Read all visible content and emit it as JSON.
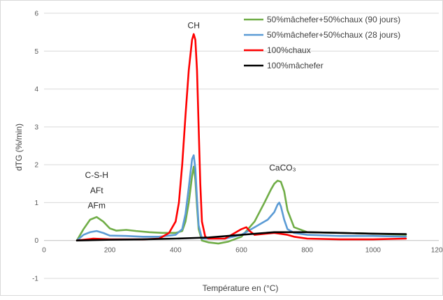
{
  "chart_data": {
    "type": "line",
    "xlabel": "Température en (°C)",
    "ylabel": "dTG (%/min)",
    "xlim": [
      0,
      1200
    ],
    "ylim": [
      -1,
      6
    ],
    "x_ticks": [
      "0",
      "200",
      "400",
      "600",
      "800",
      "1000",
      "1200"
    ],
    "y_ticks": [
      "-1",
      "0",
      "1",
      "2",
      "3",
      "4",
      "5",
      "6"
    ],
    "x_tick_values": [
      0,
      200,
      400,
      600,
      800,
      1000,
      1200
    ],
    "y_tick_values": [
      -1,
      0,
      1,
      2,
      3,
      4,
      5,
      6
    ],
    "grid": "horizontal",
    "legend_position": "top-right",
    "series": [
      {
        "name": "50%mâchefer+50%chaux (90 jours)",
        "color": "#70ad47",
        "x": [
          100,
          120,
          140,
          160,
          180,
          200,
          220,
          250,
          280,
          320,
          360,
          400,
          420,
          430,
          440,
          450,
          455,
          460,
          465,
          470,
          480,
          500,
          530,
          560,
          600,
          640,
          670,
          690,
          700,
          710,
          720,
          730,
          740,
          760,
          800,
          900,
          1000,
          1100
        ],
        "y": [
          0.0,
          0.3,
          0.55,
          0.62,
          0.5,
          0.32,
          0.26,
          0.28,
          0.25,
          0.22,
          0.2,
          0.2,
          0.25,
          0.5,
          1.0,
          1.7,
          1.95,
          1.6,
          0.9,
          0.3,
          0.0,
          -0.05,
          -0.08,
          -0.03,
          0.1,
          0.5,
          1.0,
          1.35,
          1.5,
          1.58,
          1.55,
          1.3,
          0.8,
          0.35,
          0.22,
          0.2,
          0.18,
          0.15
        ]
      },
      {
        "name": "50%mâchefer+50%chaux (28 jours)",
        "color": "#5b9bd5",
        "x": [
          100,
          120,
          140,
          160,
          180,
          200,
          250,
          300,
          350,
          400,
          420,
          430,
          440,
          450,
          455,
          460,
          465,
          470,
          480,
          500,
          550,
          600,
          640,
          680,
          700,
          710,
          715,
          720,
          730,
          740,
          760,
          800,
          900,
          1000,
          1100
        ],
        "y": [
          0.0,
          0.15,
          0.22,
          0.25,
          0.2,
          0.13,
          0.12,
          0.1,
          0.1,
          0.15,
          0.3,
          0.7,
          1.4,
          2.15,
          2.25,
          1.9,
          1.1,
          0.4,
          0.05,
          0.05,
          0.05,
          0.15,
          0.35,
          0.55,
          0.75,
          0.95,
          1.0,
          0.9,
          0.55,
          0.3,
          0.2,
          0.15,
          0.12,
          0.12,
          0.1
        ]
      },
      {
        "name": "100%chaux",
        "color": "#ff0000",
        "x": [
          100,
          150,
          200,
          250,
          300,
          350,
          380,
          400,
          410,
          420,
          430,
          440,
          450,
          455,
          460,
          465,
          470,
          475,
          480,
          490,
          500,
          550,
          580,
          600,
          615,
          625,
          640,
          700,
          740,
          760,
          800,
          900,
          1000,
          1100
        ],
        "y": [
          0.0,
          0.05,
          0.03,
          0.03,
          0.03,
          0.05,
          0.2,
          0.5,
          1.0,
          2.0,
          3.3,
          4.5,
          5.3,
          5.45,
          5.3,
          4.5,
          3.0,
          1.5,
          0.5,
          0.1,
          0.05,
          0.05,
          0.2,
          0.3,
          0.35,
          0.25,
          0.15,
          0.2,
          0.15,
          0.1,
          0.05,
          0.03,
          0.03,
          0.05
        ]
      },
      {
        "name": "100%mâchefer",
        "color": "#000000",
        "x": [
          100,
          200,
          300,
          400,
          500,
          600,
          700,
          800,
          900,
          1000,
          1100
        ],
        "y": [
          0.0,
          0.02,
          0.03,
          0.05,
          0.08,
          0.15,
          0.22,
          0.22,
          0.2,
          0.18,
          0.17
        ]
      }
    ],
    "annotations": [
      {
        "text": "CH",
        "x": 455,
        "y": 5.6
      },
      {
        "text": "C-S-H",
        "x": 160,
        "y": 1.65
      },
      {
        "text": "AFt",
        "x": 160,
        "y": 1.25
      },
      {
        "text": "AFm",
        "x": 160,
        "y": 0.85
      },
      {
        "text": "CaCO₃",
        "x": 725,
        "y": 1.85
      }
    ]
  }
}
